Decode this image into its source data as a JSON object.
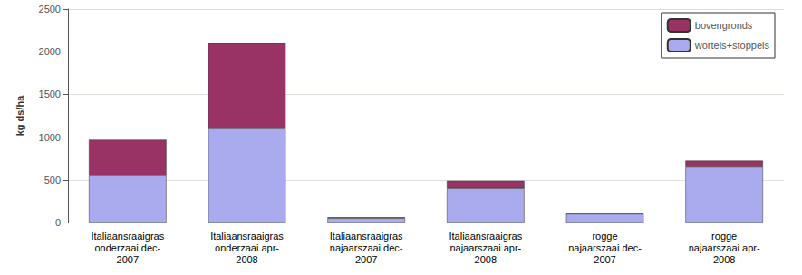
{
  "chart_data": {
    "type": "bar",
    "stacked": true,
    "categories": [
      "Italiaansraaigras\nonderzaai dec-\n2007",
      "Italiaansraaigras\nonderzaai apr-\n2008",
      "Italiaansraaigras\nnajaarszaai dec-\n2007",
      "Italiaansraaigras\nnajaarszaai apr-\n2008",
      "rogge\nnajaarszaai dec-\n2007",
      "rogge\nnajaarszaai apr-\n2008"
    ],
    "series": [
      {
        "name": "wortels+stoppels",
        "color": "#aaaaee",
        "values": [
          550,
          1100,
          50,
          400,
          100,
          650
        ]
      },
      {
        "name": "bovengronds",
        "color": "#993366",
        "values": [
          420,
          1000,
          10,
          90,
          10,
          75
        ]
      }
    ],
    "ylabel": "kg ds/ha",
    "ylim": [
      0,
      2500
    ],
    "yticks": [
      0,
      500,
      1000,
      1500,
      2000,
      2500
    ],
    "grid": true,
    "legend": "upper right"
  }
}
